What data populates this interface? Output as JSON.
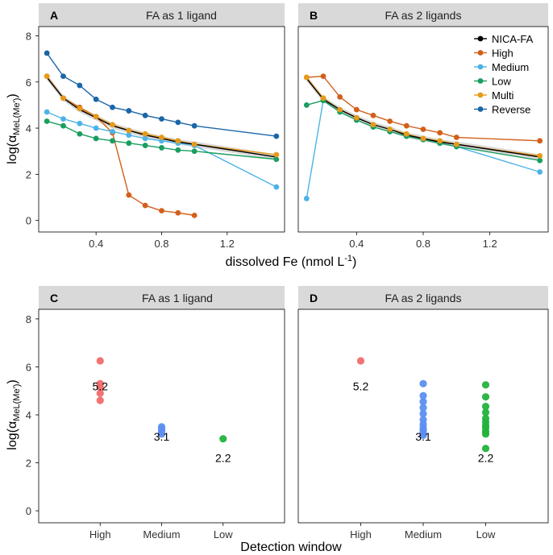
{
  "colors": {
    "strip": "#d9d9d9",
    "NICA-FA": "#000000",
    "High": "#d35f1a",
    "Medium": "#4db3e6",
    "Low": "#1a9e5f",
    "Multi": "#e69a1a",
    "Reverse": "#1a66a8",
    "win_high": "#f26b6b",
    "win_medium": "#5b8ff0",
    "win_low": "#22b33c",
    "ribbon": "#d0d0d0"
  },
  "chart_data": [
    {
      "id": "A",
      "type": "line",
      "panel_label": "A",
      "strip_title": "FA as 1 ligand",
      "xlabel": "dissolved Fe (nmol L",
      "xlabel_sup": "-1",
      "xlabel_end": ")",
      "ylabel": "log(α",
      "ylabel_sub": "MeL(Me')",
      "ylabel_end": ")",
      "xlim": [
        0.05,
        1.55
      ],
      "ylim": [
        -0.5,
        8.4
      ],
      "xticks": [
        0.4,
        0.8,
        1.2
      ],
      "xtick_labels": [
        "0.4",
        "0.8",
        "1.2"
      ],
      "yticks": [
        0,
        2,
        4,
        6,
        8
      ],
      "ytick_labels": [
        "0",
        "2",
        "4",
        "6",
        "8"
      ],
      "x": [
        0.1,
        0.2,
        0.3,
        0.4,
        0.5,
        0.6,
        0.7,
        0.8,
        0.9,
        1.0,
        1.5
      ],
      "series": [
        {
          "name": "NICA-FA",
          "x": [
            0.1,
            0.2,
            0.3,
            0.4,
            0.5,
            0.6,
            0.7,
            0.8,
            0.9,
            1.0,
            1.5
          ],
          "values": [
            6.2,
            5.3,
            4.8,
            4.45,
            4.1,
            3.9,
            3.7,
            3.55,
            3.4,
            3.3,
            2.75
          ]
        },
        {
          "name": "High",
          "x": [
            0.1,
            0.2,
            0.3,
            0.4,
            0.5,
            0.6,
            0.7,
            0.8,
            0.9,
            1.0
          ],
          "values": [
            6.25,
            5.3,
            4.9,
            4.5,
            3.8,
            1.1,
            0.65,
            0.42,
            0.33,
            0.22
          ]
        },
        {
          "name": "Medium",
          "x": [
            0.1,
            0.2,
            0.3,
            0.4,
            0.5,
            0.6,
            0.7,
            0.8,
            0.9,
            1.0,
            1.5
          ],
          "values": [
            4.7,
            4.4,
            4.2,
            4.0,
            3.85,
            3.7,
            3.55,
            3.45,
            3.35,
            3.25,
            1.45
          ]
        },
        {
          "name": "Low",
          "x": [
            0.1,
            0.2,
            0.3,
            0.4,
            0.5,
            0.6,
            0.7,
            0.8,
            0.9,
            1.0,
            1.5
          ],
          "values": [
            4.3,
            4.1,
            3.75,
            3.55,
            3.45,
            3.35,
            3.25,
            3.15,
            3.05,
            3.0,
            2.65
          ]
        },
        {
          "name": "Multi",
          "x": [
            0.1,
            0.2,
            0.3,
            0.4,
            0.5,
            0.6,
            0.7,
            0.8,
            0.9,
            1.0,
            1.5
          ],
          "values": [
            6.25,
            5.3,
            4.85,
            4.5,
            4.15,
            3.9,
            3.75,
            3.6,
            3.45,
            3.3,
            2.85
          ]
        },
        {
          "name": "Reverse",
          "x": [
            0.1,
            0.2,
            0.3,
            0.4,
            0.5,
            0.6,
            0.7,
            0.8,
            0.9,
            1.0,
            1.5
          ],
          "values": [
            7.25,
            6.25,
            5.85,
            5.25,
            4.9,
            4.75,
            4.55,
            4.4,
            4.25,
            4.1,
            3.65
          ]
        }
      ]
    },
    {
      "id": "B",
      "type": "line",
      "panel_label": "B",
      "strip_title": "FA as 2 ligands",
      "xlim": [
        0.05,
        1.55
      ],
      "ylim": [
        -0.5,
        8.4
      ],
      "xticks": [
        0.4,
        0.8,
        1.2
      ],
      "xtick_labels": [
        "0.4",
        "0.8",
        "1.2"
      ],
      "legend": {
        "position": "top-right",
        "entries": [
          "NICA-FA",
          "High",
          "Medium",
          "Low",
          "Multi",
          "Reverse"
        ]
      },
      "series": [
        {
          "name": "NICA-FA",
          "x": [
            0.1,
            0.2,
            0.3,
            0.4,
            0.5,
            0.6,
            0.7,
            0.8,
            0.9,
            1.0,
            1.5
          ],
          "values": [
            6.15,
            5.25,
            4.8,
            4.45,
            4.15,
            3.95,
            3.7,
            3.55,
            3.4,
            3.3,
            2.75
          ]
        },
        {
          "name": "High",
          "x": [
            0.1,
            0.2,
            0.3,
            0.4,
            0.5,
            0.6,
            0.7,
            0.8,
            0.9,
            1.0,
            1.5
          ],
          "values": [
            6.2,
            6.25,
            5.35,
            4.8,
            4.55,
            4.3,
            4.1,
            3.95,
            3.8,
            3.6,
            3.45
          ]
        },
        {
          "name": "Medium",
          "x": [
            0.1,
            0.2,
            0.3,
            0.4,
            0.5,
            0.6,
            0.7,
            0.8,
            0.9,
            1.0,
            1.5
          ],
          "values": [
            0.95,
            5.2,
            4.7,
            4.35,
            4.05,
            3.85,
            3.65,
            3.5,
            3.35,
            3.2,
            2.1
          ]
        },
        {
          "name": "Low",
          "x": [
            0.1,
            0.2,
            0.3,
            0.4,
            0.5,
            0.6,
            0.7,
            0.8,
            0.9,
            1.0,
            1.5
          ],
          "values": [
            5.0,
            5.2,
            4.7,
            4.35,
            4.05,
            3.85,
            3.65,
            3.5,
            3.35,
            3.2,
            2.6
          ]
        },
        {
          "name": "Multi",
          "x": [
            0.1,
            0.2,
            0.3,
            0.4,
            0.5,
            0.6,
            0.7,
            0.8,
            0.9,
            1.0,
            1.5
          ],
          "values": [
            6.2,
            5.3,
            4.8,
            4.45,
            4.15,
            3.95,
            3.75,
            3.55,
            3.45,
            3.3,
            2.8
          ]
        },
        {
          "name": "Reverse",
          "x": [],
          "values": []
        }
      ]
    },
    {
      "id": "C",
      "type": "scatter",
      "panel_label": "C",
      "strip_title": "FA as 1 ligand",
      "xlabel": "Detection window",
      "ylabel": "log(α",
      "ylabel_sub": "MeL(Me')",
      "ylabel_end": ")",
      "categories": [
        "High",
        "Medium",
        "Low"
      ],
      "ylim": [
        -0.5,
        8.4
      ],
      "yticks": [
        0,
        2,
        4,
        6,
        8
      ],
      "ytick_labels": [
        "0",
        "2",
        "4",
        "6",
        "8"
      ],
      "points": [
        [
          6.25,
          5.3,
          5.15,
          4.9,
          4.6
        ],
        [
          3.5,
          3.4,
          3.3,
          3.2
        ],
        [
          3.0
        ]
      ],
      "labels": [
        "5.2",
        "3.1",
        "2.2"
      ],
      "label_y": [
        5.2,
        3.1,
        2.2
      ]
    },
    {
      "id": "D",
      "type": "scatter",
      "panel_label": "D",
      "strip_title": "FA as 2 ligands",
      "categories": [
        "High",
        "Medium",
        "Low"
      ],
      "ylim": [
        -0.5,
        8.4
      ],
      "points": [
        [
          6.25
        ],
        [
          5.3,
          4.8,
          4.55,
          4.3,
          4.05,
          3.8,
          3.6,
          3.45,
          3.35,
          3.25,
          3.15
        ],
        [
          5.25,
          4.75,
          4.35,
          4.1,
          3.85,
          3.7,
          3.55,
          3.45,
          3.3,
          3.2,
          2.6
        ]
      ],
      "labels": [
        "5.2",
        "3.1",
        "2.2"
      ],
      "label_y": [
        5.2,
        3.1,
        2.2
      ]
    }
  ]
}
